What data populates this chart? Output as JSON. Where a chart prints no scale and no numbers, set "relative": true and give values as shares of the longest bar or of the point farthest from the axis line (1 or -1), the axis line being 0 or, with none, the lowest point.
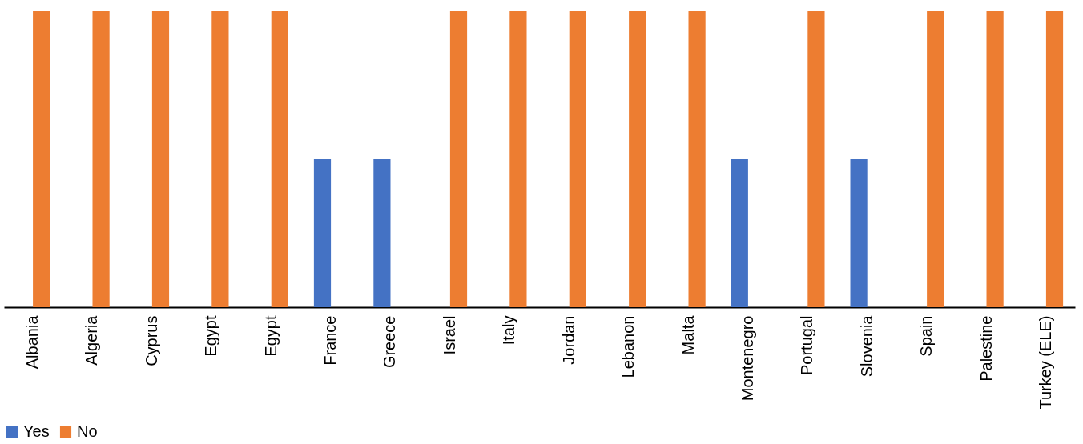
{
  "chart_data": {
    "type": "bar",
    "relative": true,
    "legend": "bottom",
    "grid": false,
    "categories": [
      "Albania",
      "Algeria",
      "Cyprus",
      "Egypt",
      "Egypt",
      "France",
      "Greece",
      "Israel",
      "Italy",
      "Jordan",
      "Lebanon",
      "Malta",
      "Montenegro",
      "Portugal",
      "Slovenia",
      "Spain",
      "Palestine",
      "Turkey (ELE)"
    ],
    "series": [
      {
        "name": "Yes",
        "color": "#4472c4",
        "values": [
          null,
          null,
          null,
          null,
          null,
          0.5,
          0.5,
          null,
          null,
          null,
          null,
          null,
          0.5,
          null,
          0.5,
          null,
          null,
          null
        ]
      },
      {
        "name": "No",
        "color": "#ed7d31",
        "values": [
          1,
          1,
          1,
          1,
          1,
          null,
          null,
          1,
          1,
          1,
          1,
          1,
          null,
          1,
          null,
          1,
          1,
          1
        ]
      }
    ]
  }
}
